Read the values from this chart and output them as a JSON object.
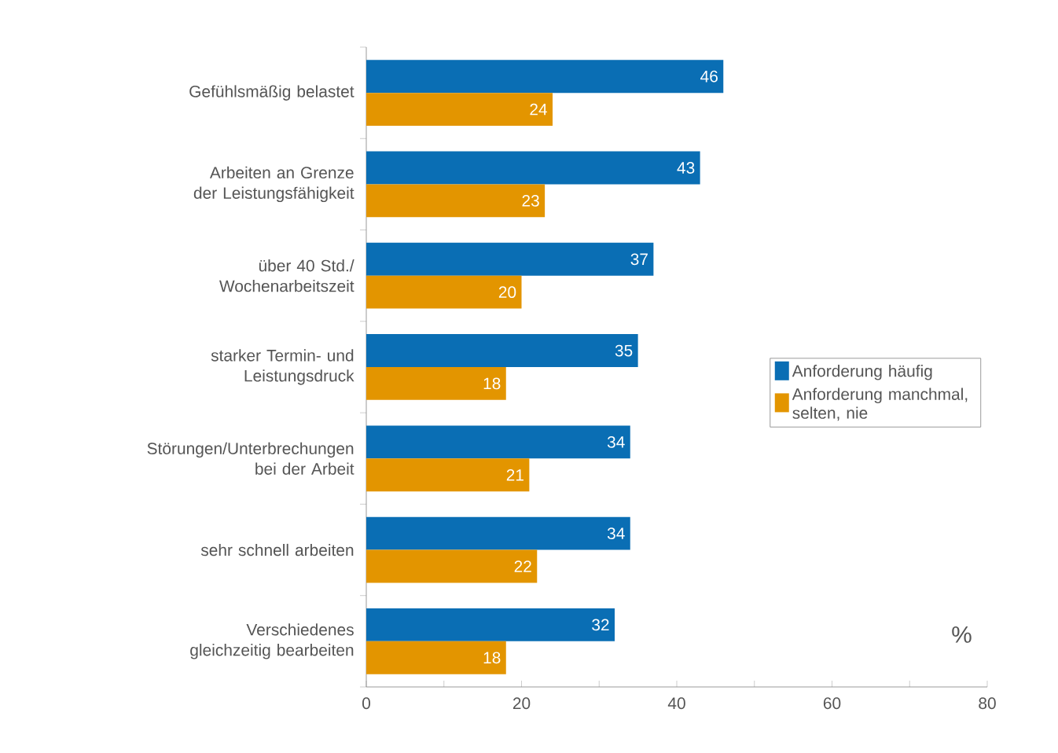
{
  "chart_data": {
    "type": "bar",
    "orientation": "horizontal",
    "xlabel": "%",
    "categories": [
      "Gefühlsmäßig belastet",
      "Arbeiten an Grenze der Leistungsfähigkeit",
      "über 40 Std./ Wochenarbeitszeit",
      "starker Termin- und Leistungsdruck",
      "Störungen/Unterbrechungen bei der Arbeit",
      "sehr schnell arbeiten",
      "Verschiedenes gleichzeitig bearbeiten"
    ],
    "series": [
      {
        "name": "Anforderung häufig",
        "color": "#0a6eb4",
        "values": [
          46,
          43,
          37,
          35,
          34,
          34,
          32
        ]
      },
      {
        "name": "Anforderung manchmal, selten, nie",
        "color": "#e39500",
        "values": [
          24,
          23,
          20,
          18,
          21,
          22,
          18
        ]
      }
    ],
    "xlim": [
      0,
      80
    ],
    "xticks": [
      0,
      {
        "value": 10,
        "label": null
      },
      20,
      {
        "value": 30,
        "label": null
      },
      40,
      {
        "value": 50,
        "label": null
      },
      60,
      {
        "value": 70,
        "label": null
      },
      80
    ],
    "data_labels": true,
    "legend": "right",
    "grid": false
  }
}
